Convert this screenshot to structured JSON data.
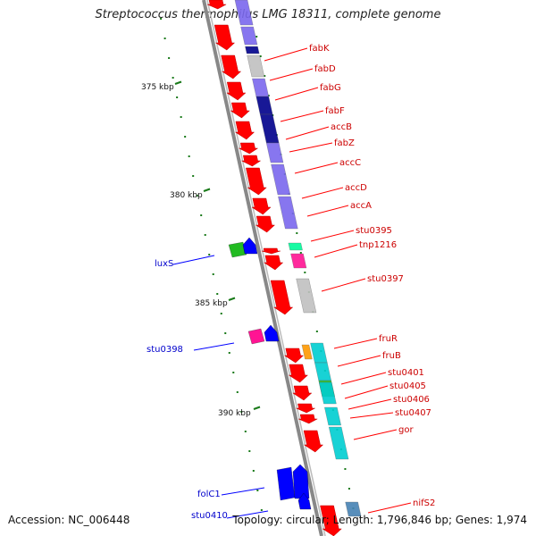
{
  "title": "Streptococcus thermophilus LMG 18311, complete genome",
  "footer": {
    "accession": "Accession: NC_006448",
    "topology": "Topology: circular; Length: 1,796,846 bp; Genes: 1,974"
  },
  "colors": {
    "forward_gene": "#ff0000",
    "reverse_gene": "#0000ff",
    "label_forward": "#cc0000",
    "label_reverse": "#0000cc",
    "backbone": "#888888",
    "tick": "#1a7a1a",
    "cog_lipid": "#7b68ee",
    "cog_lipid_dark": "#00008b",
    "cog_unknown": "#c0c0c0",
    "cog_mobile": "#00fa9a",
    "cog_metabolism": "#00ced1",
    "cog_energy": "#ff9900",
    "cog_signal": "#22bb22",
    "cog_regulation": "#ff1493",
    "cog_cell": "#4682b4"
  },
  "ticks": [
    {
      "label": "375 kbp"
    },
    {
      "label": "380 kbp"
    },
    {
      "label": "385 kbp"
    },
    {
      "label": "390 kbp"
    }
  ],
  "forward_labels": [
    "fabK",
    "fabD",
    "fabG",
    "fabF",
    "accB",
    "fabZ",
    "accC",
    "accD",
    "accA",
    "stu0395",
    "tnp1216",
    "stu0397",
    "fruR",
    "fruB",
    "stu0401",
    "stu0405",
    "stu0406",
    "stu0407",
    "gor",
    "nifS2"
  ],
  "reverse_labels": [
    "luxS",
    "stu0398",
    "folC1",
    "stu0410"
  ]
}
